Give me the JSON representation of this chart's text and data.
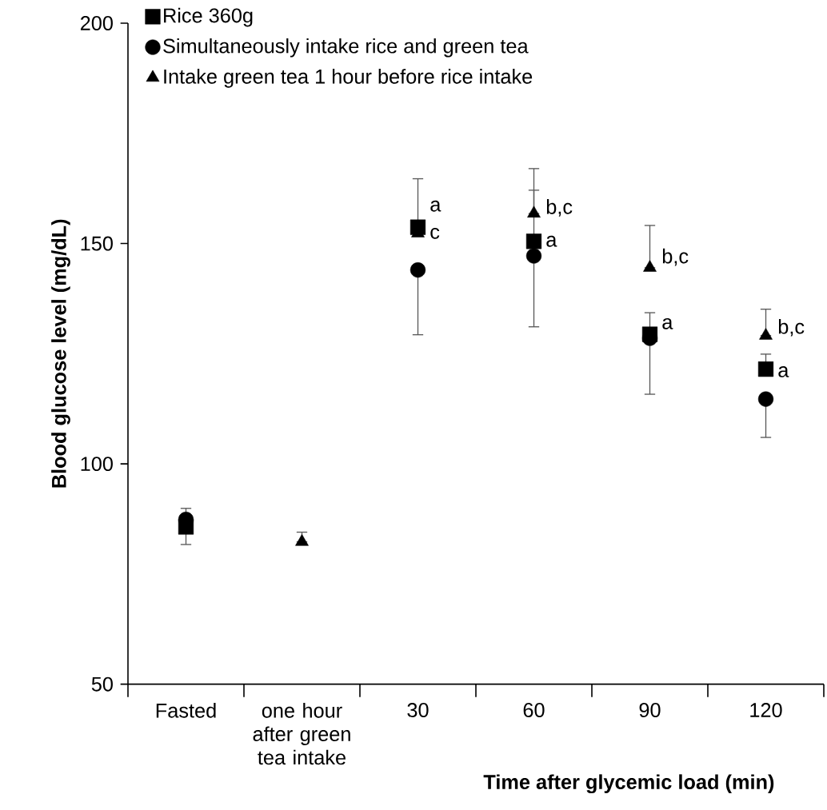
{
  "chart_data": {
    "type": "scatter",
    "xlabel": "Time after glycemic load (min)",
    "ylabel": "Blood glucose level (mg/dL)",
    "categories": [
      "Fasted",
      "one hour after green tea intake",
      "30",
      "60",
      "90",
      "120"
    ],
    "ylim": [
      50,
      200
    ],
    "yticks": [
      50,
      100,
      150,
      200
    ],
    "legend": "top left",
    "series": [
      {
        "name": "Rice 360g",
        "color": "#000000",
        "marker": "square",
        "values": [
          85.7,
          null,
          153.7,
          150.5,
          129.4,
          121.5
        ],
        "errors": [
          [
            81.7,
            85.7
          ],
          null,
          [
            153.7,
            164.7
          ],
          [
            150.5,
            162.1
          ],
          [
            129.4,
            134.3
          ],
          [
            121.5,
            124.9
          ]
        ]
      },
      {
        "name": "Simultaneously intake rice and green tea",
        "color": "#000000",
        "marker": "circle",
        "values": [
          87.4,
          null,
          144.0,
          147.2,
          128.5,
          114.7
        ],
        "errors": [
          [
            87.4,
            89.9
          ],
          null,
          [
            129.3,
            144.0
          ],
          [
            131.1,
            147.2
          ],
          [
            115.8,
            128.5
          ],
          [
            106.0,
            114.7
          ]
        ]
      },
      {
        "name": "Intake green tea 1 hour before rice intake",
        "color": "#000000",
        "marker": "triangle",
        "values": [
          null,
          82.3,
          152.3,
          156.8,
          144.5,
          129.1
        ],
        "errors": [
          null,
          [
            82.3,
            84.5
          ],
          null,
          [
            156.8,
            167.0
          ],
          [
            144.5,
            154.1
          ],
          [
            129.1,
            135.1
          ]
        ]
      }
    ],
    "annotations": [
      {
        "text": "a",
        "x": "30",
        "y": 158.5
      },
      {
        "text": "c",
        "x": "30",
        "y": 152.3
      },
      {
        "text": "b,c",
        "x": "60",
        "y": 158.1
      },
      {
        "text": "a",
        "x": "60",
        "y": 150.5
      },
      {
        "text": "b,c",
        "x": "90",
        "y": 146.9
      },
      {
        "text": "a",
        "x": "90",
        "y": 131.8
      },
      {
        "text": "b,c",
        "x": "120",
        "y": 130.9
      },
      {
        "text": "a",
        "x": "120",
        "y": 120.9
      }
    ]
  }
}
